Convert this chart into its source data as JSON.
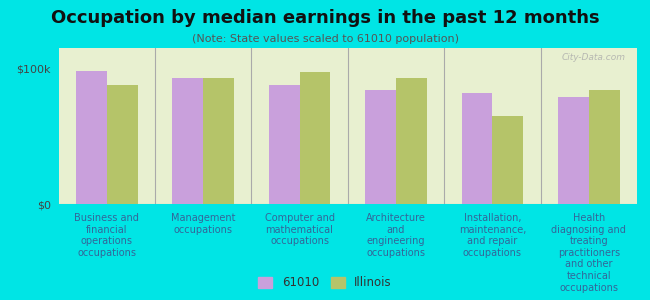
{
  "title": "Occupation by median earnings in the past 12 months",
  "subtitle": "(Note: State values scaled to 61010 population)",
  "background_color": "#00e5e5",
  "plot_bg_color": "#e8f0d0",
  "categories": [
    "Business and\nfinancial\noperations\noccupations",
    "Management\noccupations",
    "Computer and\nmathematical\noccupations",
    "Architecture\nand\nengineering\noccupations",
    "Installation,\nmaintenance,\nand repair\noccupations",
    "Health\ndiagnosing and\ntreating\npractitioners\nand other\ntechnical\noccupations"
  ],
  "values_61010": [
    98000,
    93000,
    88000,
    84000,
    82000,
    79000
  ],
  "values_illinois": [
    88000,
    93000,
    97000,
    93000,
    65000,
    84000
  ],
  "color_61010": "#c9a0dc",
  "color_illinois": "#b5c469",
  "legend_61010": "61010",
  "legend_illinois": "Illinois",
  "ylim": [
    0,
    115000
  ],
  "yticks": [
    0,
    100000
  ],
  "ytick_labels": [
    "$0",
    "$100k"
  ],
  "ylabel_fontsize": 8,
  "title_fontsize": 13,
  "subtitle_fontsize": 8,
  "tick_label_fontsize": 7,
  "watermark": "City-Data.com"
}
